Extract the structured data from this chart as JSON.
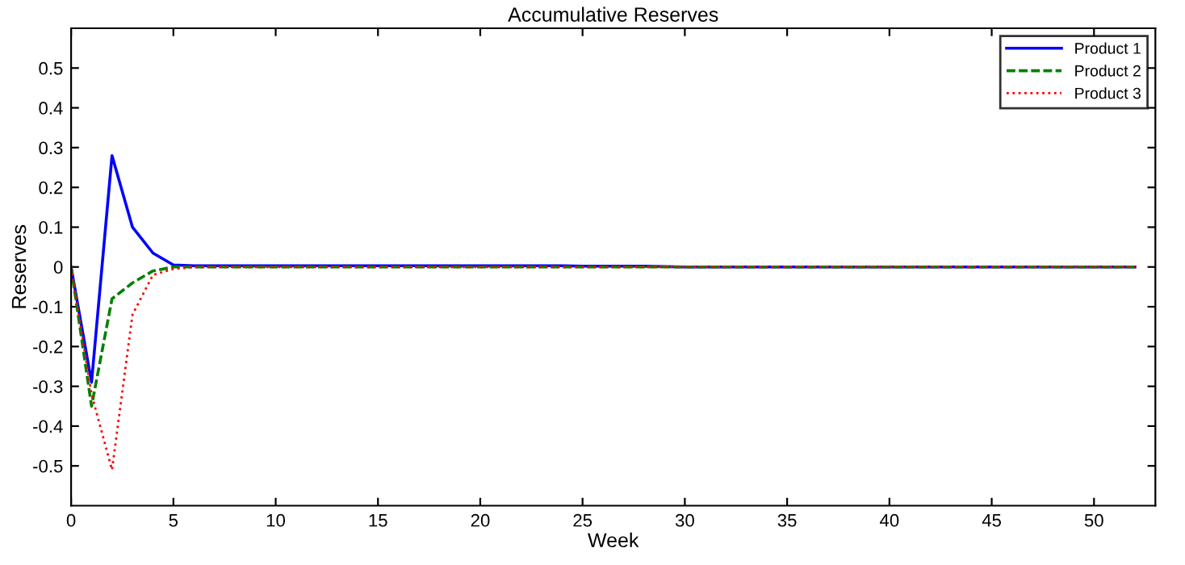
{
  "chart_data": {
    "type": "line",
    "title": "Accumulative Reserves",
    "xlabel": "Week",
    "ylabel": "Reserves",
    "x": [
      0,
      1,
      2,
      3,
      4,
      5,
      6,
      7,
      8,
      9,
      10,
      11,
      12,
      13,
      14,
      15,
      16,
      17,
      18,
      19,
      20,
      21,
      22,
      23,
      24,
      25,
      26,
      27,
      28,
      29,
      30,
      31,
      32,
      33,
      34,
      35,
      36,
      37,
      38,
      39,
      40,
      41,
      42,
      43,
      44,
      45,
      46,
      47,
      48,
      49,
      50,
      51,
      52
    ],
    "series": [
      {
        "name": "Product 1",
        "color": "#0000ff",
        "line_style": "solid",
        "values": [
          0,
          -0.29,
          0.28,
          0.1,
          0.035,
          0.005,
          0.003,
          0.003,
          0.003,
          0.003,
          0.003,
          0.003,
          0.003,
          0.003,
          0.003,
          0.003,
          0.003,
          0.003,
          0.003,
          0.003,
          0.003,
          0.003,
          0.003,
          0.003,
          0.003,
          0.002,
          0.002,
          0.002,
          0.002,
          0.001,
          0,
          0,
          0,
          0,
          0,
          0,
          0,
          0,
          0,
          0,
          0,
          0,
          0,
          0,
          0,
          0,
          0,
          0,
          0,
          0,
          0,
          0,
          0
        ]
      },
      {
        "name": "Product 2",
        "color": "#008000",
        "line_style": "dashed",
        "values": [
          0,
          -0.35,
          -0.08,
          -0.04,
          -0.01,
          0,
          0,
          0,
          0,
          0,
          0,
          0,
          0,
          0,
          0,
          0,
          0,
          0,
          0,
          0,
          0,
          0,
          0,
          0,
          0,
          0,
          0,
          0,
          0,
          0,
          0,
          0,
          0,
          0,
          0,
          0,
          0,
          0,
          0,
          0,
          0,
          0,
          0,
          0,
          0,
          0,
          0,
          0,
          0,
          0,
          0,
          0,
          0
        ]
      },
      {
        "name": "Product 3",
        "color": "#ff0000",
        "line_style": "dotted",
        "values": [
          0,
          -0.32,
          -0.51,
          -0.12,
          -0.02,
          -0.005,
          0,
          0,
          0,
          0,
          0,
          0,
          0,
          0,
          0,
          0,
          0,
          0,
          0,
          0,
          0,
          0,
          0,
          0,
          0,
          0,
          0,
          0,
          0,
          0,
          0,
          0,
          0,
          0,
          0,
          0,
          0,
          0,
          0,
          0,
          0,
          0,
          0,
          0,
          0,
          0,
          0,
          0,
          0,
          0,
          0,
          0,
          0
        ]
      }
    ],
    "xlim": [
      0,
      53
    ],
    "xticks": [
      0,
      5,
      10,
      15,
      20,
      25,
      30,
      35,
      40,
      45,
      50
    ],
    "ylim": [
      -0.6,
      0.6
    ],
    "yticks": [
      -0.5,
      -0.4,
      -0.3,
      -0.2,
      -0.1,
      0,
      0.1,
      0.2,
      0.3,
      0.4,
      0.5
    ],
    "legend": "top right",
    "grid": false
  }
}
